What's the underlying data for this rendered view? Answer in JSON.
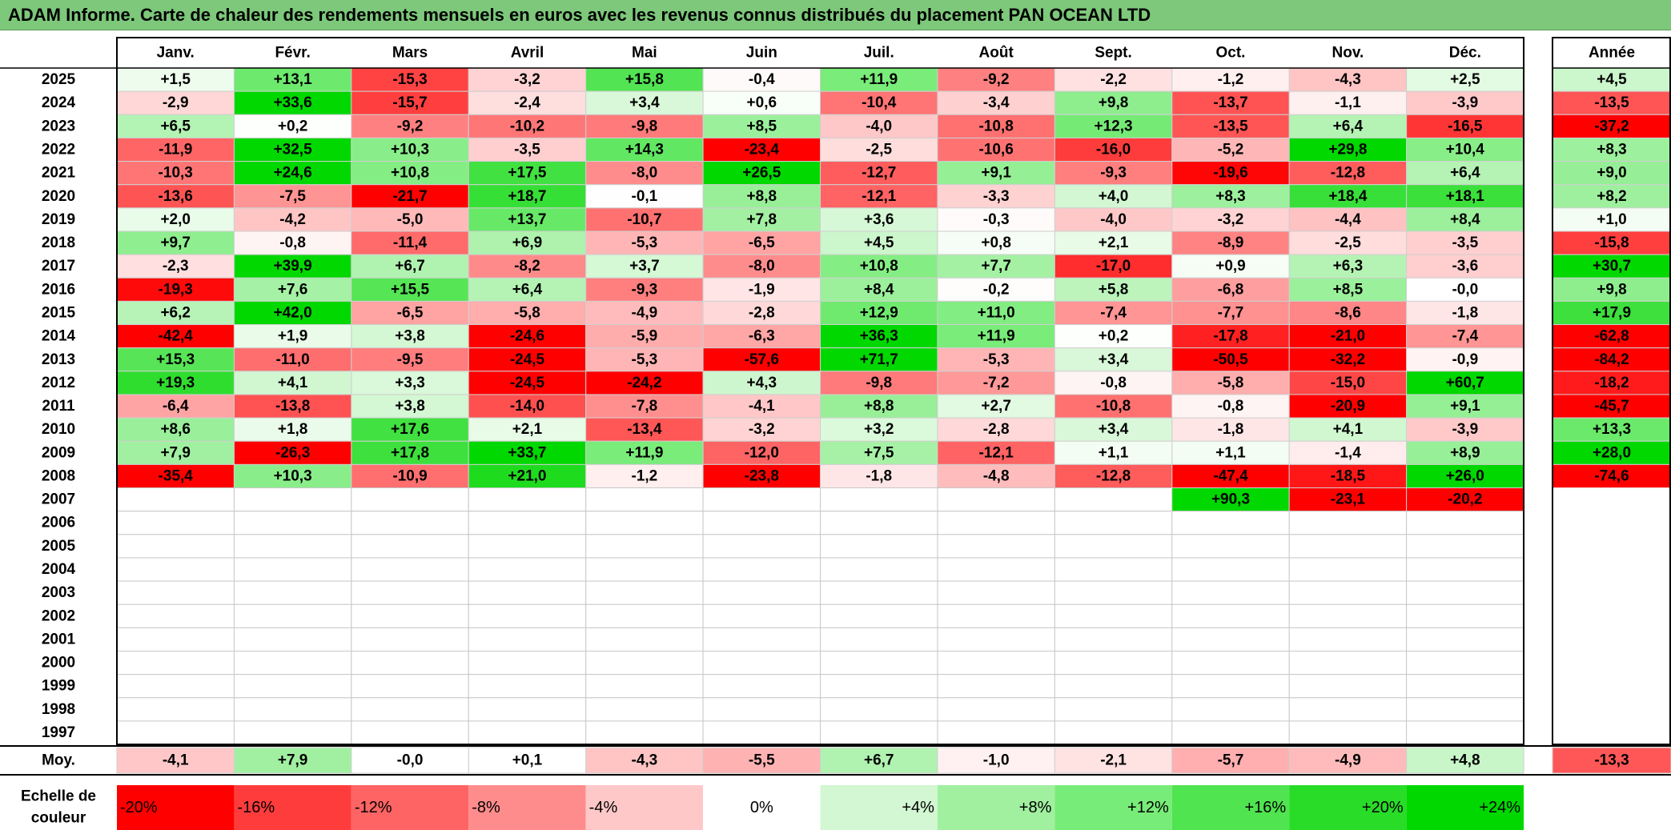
{
  "title": "ADAM Informe. Carte de chaleur des rendements mensuels en euros avec les revenus connus distribués du placement PAN OCEAN LTD",
  "chart_data": {
    "type": "heatmap",
    "title": "ADAM Informe. Carte de chaleur des rendements mensuels en euros avec les revenus connus distribués du placement PAN OCEAN LTD",
    "months": [
      "Janv.",
      "Févr.",
      "Mars",
      "Avril",
      "Mai",
      "Juin",
      "Juil.",
      "Août",
      "Sept.",
      "Oct.",
      "Nov.",
      "Déc."
    ],
    "year_label": "Année",
    "avg_label": "Moy.",
    "scale_label": [
      "Echelle de",
      "couleur"
    ],
    "years": [
      2025,
      2024,
      2023,
      2022,
      2021,
      2020,
      2019,
      2018,
      2017,
      2016,
      2015,
      2014,
      2013,
      2012,
      2011,
      2010,
      2009,
      2008,
      2007,
      2006,
      2005,
      2004,
      2003,
      2002,
      2001,
      2000,
      1999,
      1998,
      1997
    ],
    "values": [
      [
        "+1,5",
        "+13,1",
        "-15,3",
        "-3,2",
        "+15,8",
        "-0,4",
        "+11,9",
        "-9,2",
        "-2,2",
        "-1,2",
        "-4,3",
        "+2,5"
      ],
      [
        "-2,9",
        "+33,6",
        "-15,7",
        "-2,4",
        "+3,4",
        "+0,6",
        "-10,4",
        "-3,4",
        "+9,8",
        "-13,7",
        "-1,1",
        "-3,9"
      ],
      [
        "+6,5",
        "+0,2",
        "-9,2",
        "-10,2",
        "-9,8",
        "+8,5",
        "-4,0",
        "-10,8",
        "+12,3",
        "-13,5",
        "+6,4",
        "-16,5"
      ],
      [
        "-11,9",
        "+32,5",
        "+10,3",
        "-3,5",
        "+14,3",
        "-23,4",
        "-2,5",
        "-10,6",
        "-16,0",
        "-5,2",
        "+29,8",
        "+10,4"
      ],
      [
        "-10,3",
        "+24,6",
        "+10,8",
        "+17,5",
        "-8,0",
        "+26,5",
        "-12,7",
        "+9,1",
        "-9,3",
        "-19,6",
        "-12,8",
        "+6,4"
      ],
      [
        "-13,6",
        "-7,5",
        "-21,7",
        "+18,7",
        "-0,1",
        "+8,8",
        "-12,1",
        "-3,3",
        "+4,0",
        "+8,3",
        "+18,4",
        "+18,1"
      ],
      [
        "+2,0",
        "-4,2",
        "-5,0",
        "+13,7",
        "-10,7",
        "+7,8",
        "+3,6",
        "-0,3",
        "-4,0",
        "-3,2",
        "-4,4",
        "+8,4"
      ],
      [
        "+9,7",
        "-0,8",
        "-11,4",
        "+6,9",
        "-5,3",
        "-6,5",
        "+4,5",
        "+0,8",
        "+2,1",
        "-8,9",
        "-2,5",
        "-3,5"
      ],
      [
        "-2,3",
        "+39,9",
        "+6,7",
        "-8,2",
        "+3,7",
        "-8,0",
        "+10,8",
        "+7,7",
        "-17,0",
        "+0,9",
        "+6,3",
        "-3,6"
      ],
      [
        "-19,3",
        "+7,6",
        "+15,5",
        "+6,4",
        "-9,3",
        "-1,9",
        "+8,4",
        "-0,2",
        "+5,8",
        "-6,8",
        "+8,5",
        "-0,0"
      ],
      [
        "+6,2",
        "+42,0",
        "-6,5",
        "-5,8",
        "-4,9",
        "-2,8",
        "+12,9",
        "+11,0",
        "-7,4",
        "-7,7",
        "-8,6",
        "-1,8"
      ],
      [
        "-42,4",
        "+1,9",
        "+3,8",
        "-24,6",
        "-5,9",
        "-6,3",
        "+36,3",
        "+11,9",
        "+0,2",
        "-17,8",
        "-21,0",
        "-7,4"
      ],
      [
        "+15,3",
        "-11,0",
        "-9,5",
        "-24,5",
        "-5,3",
        "-57,6",
        "+71,7",
        "-5,3",
        "+3,4",
        "-50,5",
        "-32,2",
        "-0,9"
      ],
      [
        "+19,3",
        "+4,1",
        "+3,3",
        "-24,5",
        "-24,2",
        "+4,3",
        "-9,8",
        "-7,2",
        "-0,8",
        "-5,8",
        "-15,0",
        "+60,7"
      ],
      [
        "-6,4",
        "-13,8",
        "+3,8",
        "-14,0",
        "-7,8",
        "-4,1",
        "+8,8",
        "+2,7",
        "-10,8",
        "-0,8",
        "-20,9",
        "+9,1"
      ],
      [
        "+8,6",
        "+1,8",
        "+17,6",
        "+2,1",
        "-13,4",
        "-3,2",
        "+3,2",
        "-2,8",
        "+3,4",
        "-1,8",
        "+4,1",
        "-3,9"
      ],
      [
        "+7,9",
        "-26,3",
        "+17,8",
        "+33,7",
        "+11,9",
        "-12,0",
        "+7,5",
        "-12,1",
        "+1,1",
        "+1,1",
        "-1,4",
        "+8,9"
      ],
      [
        "-35,4",
        "+10,3",
        "-10,9",
        "+21,0",
        "-1,2",
        "-23,8",
        "-1,8",
        "-4,8",
        "-12,8",
        "-47,4",
        "-18,5",
        "+26,0"
      ],
      [
        "",
        "",
        "",
        "",
        "",
        "",
        "",
        "",
        "",
        "+90,3",
        "-23,1",
        "-20,2"
      ],
      [
        "",
        "",
        "",
        "",
        "",
        "",
        "",
        "",
        "",
        "",
        "",
        ""
      ],
      [
        "",
        "",
        "",
        "",
        "",
        "",
        "",
        "",
        "",
        "",
        "",
        ""
      ],
      [
        "",
        "",
        "",
        "",
        "",
        "",
        "",
        "",
        "",
        "",
        "",
        ""
      ],
      [
        "",
        "",
        "",
        "",
        "",
        "",
        "",
        "",
        "",
        "",
        "",
        ""
      ],
      [
        "",
        "",
        "",
        "",
        "",
        "",
        "",
        "",
        "",
        "",
        "",
        ""
      ],
      [
        "",
        "",
        "",
        "",
        "",
        "",
        "",
        "",
        "",
        "",
        "",
        ""
      ],
      [
        "",
        "",
        "",
        "",
        "",
        "",
        "",
        "",
        "",
        "",
        "",
        ""
      ],
      [
        "",
        "",
        "",
        "",
        "",
        "",
        "",
        "",
        "",
        "",
        "",
        ""
      ],
      [
        "",
        "",
        "",
        "",
        "",
        "",
        "",
        "",
        "",
        "",
        "",
        ""
      ],
      [
        "",
        "",
        "",
        "",
        "",
        "",
        "",
        "",
        "",
        "",
        "",
        ""
      ]
    ],
    "year_totals": [
      "+4,5",
      "-13,5",
      "-37,2",
      "+8,3",
      "+9,0",
      "+8,2",
      "+1,0",
      "-15,8",
      "+30,7",
      "+9,8",
      "+17,9",
      "-62,8",
      "-84,2",
      "-18,2",
      "-45,7",
      "+13,3",
      "+28,0",
      "-74,6",
      "",
      "",
      "",
      "",
      "",
      "",
      "",
      "",
      "",
      "",
      ""
    ],
    "monthly_avg": [
      "-4,1",
      "+7,9",
      "-0,0",
      "+0,1",
      "-4,3",
      "-5,5",
      "+6,7",
      "-1,0",
      "-2,1",
      "-5,7",
      "-4,9",
      "+4,8"
    ],
    "avg_total": "-13,3",
    "color_scale": {
      "labels": [
        "-20%",
        "-16%",
        "-12%",
        "-8%",
        "-4%",
        "0%",
        "+4%",
        "+8%",
        "+12%",
        "+16%",
        "+20%",
        "+24%"
      ],
      "colors": [
        "#ff0000",
        "#ff3c3c",
        "#ff6464",
        "#ff8c8c",
        "#ffc8c8",
        "#ffffff",
        "#d2f7d2",
        "#a0f0a0",
        "#78ec78",
        "#50e450",
        "#28dc28",
        "#00d800"
      ]
    }
  }
}
